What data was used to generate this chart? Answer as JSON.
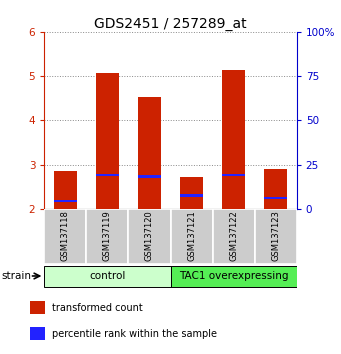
{
  "title": "GDS2451 / 257289_at",
  "samples": [
    "GSM137118",
    "GSM137119",
    "GSM137120",
    "GSM137121",
    "GSM137122",
    "GSM137123"
  ],
  "transformed_counts": [
    2.85,
    5.07,
    4.52,
    2.72,
    5.13,
    2.9
  ],
  "percentile_ranks": [
    2.18,
    2.77,
    2.73,
    2.3,
    2.77,
    2.25
  ],
  "bar_bottom": 2.0,
  "ylim_left": [
    2.0,
    6.0
  ],
  "ylim_right": [
    0,
    100
  ],
  "yticks_left": [
    2,
    3,
    4,
    5,
    6
  ],
  "yticks_right": [
    0,
    25,
    50,
    75,
    100
  ],
  "yticklabels_right": [
    "0",
    "25",
    "50",
    "75",
    "100%"
  ],
  "groups": [
    {
      "label": "control",
      "indices": [
        0,
        1,
        2
      ],
      "color": "#ccffcc"
    },
    {
      "label": "TAC1 overexpressing",
      "indices": [
        3,
        4,
        5
      ],
      "color": "#55ee55"
    }
  ],
  "bar_color_red": "#cc2200",
  "bar_color_blue": "#2222ff",
  "bar_width": 0.55,
  "blue_bar_height": 0.055,
  "strain_label": "strain",
  "legend_items": [
    {
      "color": "#cc2200",
      "label": "transformed count"
    },
    {
      "color": "#2222ff",
      "label": "percentile rank within the sample"
    }
  ],
  "grid_color": "#888888",
  "axis_color_left": "#cc2200",
  "axis_color_right": "#0000cc",
  "sample_box_color": "#cccccc",
  "title_fontsize": 10,
  "tick_fontsize": 7.5,
  "sample_fontsize": 6.0,
  "group_label_fontsize": 7.5,
  "legend_fontsize": 7.0
}
